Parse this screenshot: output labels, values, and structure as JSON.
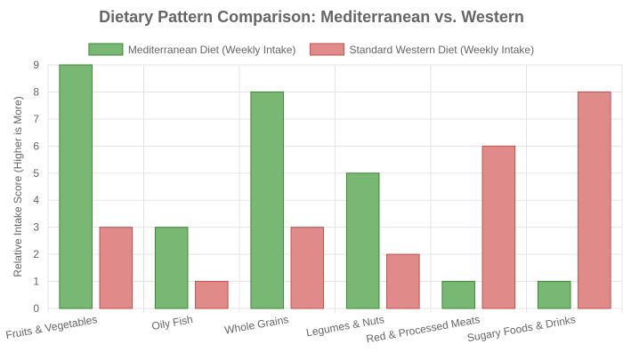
{
  "chart_data": {
    "type": "bar",
    "title": "Dietary Pattern Comparison: Mediterranean vs. Western",
    "xlabel": "",
    "ylabel": "Relative Intake Score (Higher is More)",
    "ylim": [
      0,
      9
    ],
    "yticks": [
      0,
      1,
      2,
      3,
      4,
      5,
      6,
      7,
      8,
      9
    ],
    "grid": true,
    "legend_position": "top-center",
    "categories": [
      "Fruits & Vegetables",
      "Oily Fish",
      "Whole Grains",
      "Legumes & Nuts",
      "Red & Processed Meats",
      "Sugary Foods & Drinks"
    ],
    "series": [
      {
        "name": "Mediterranean Diet (Weekly Intake)",
        "values": [
          9,
          3,
          8,
          5,
          1,
          1
        ],
        "fill": "#79b874",
        "stroke": "#3a8a33"
      },
      {
        "name": "Standard Western Diet (Weekly Intake)",
        "values": [
          3,
          1,
          3,
          2,
          6,
          8
        ],
        "fill": "#e08a8a",
        "stroke": "#c45050"
      }
    ]
  }
}
